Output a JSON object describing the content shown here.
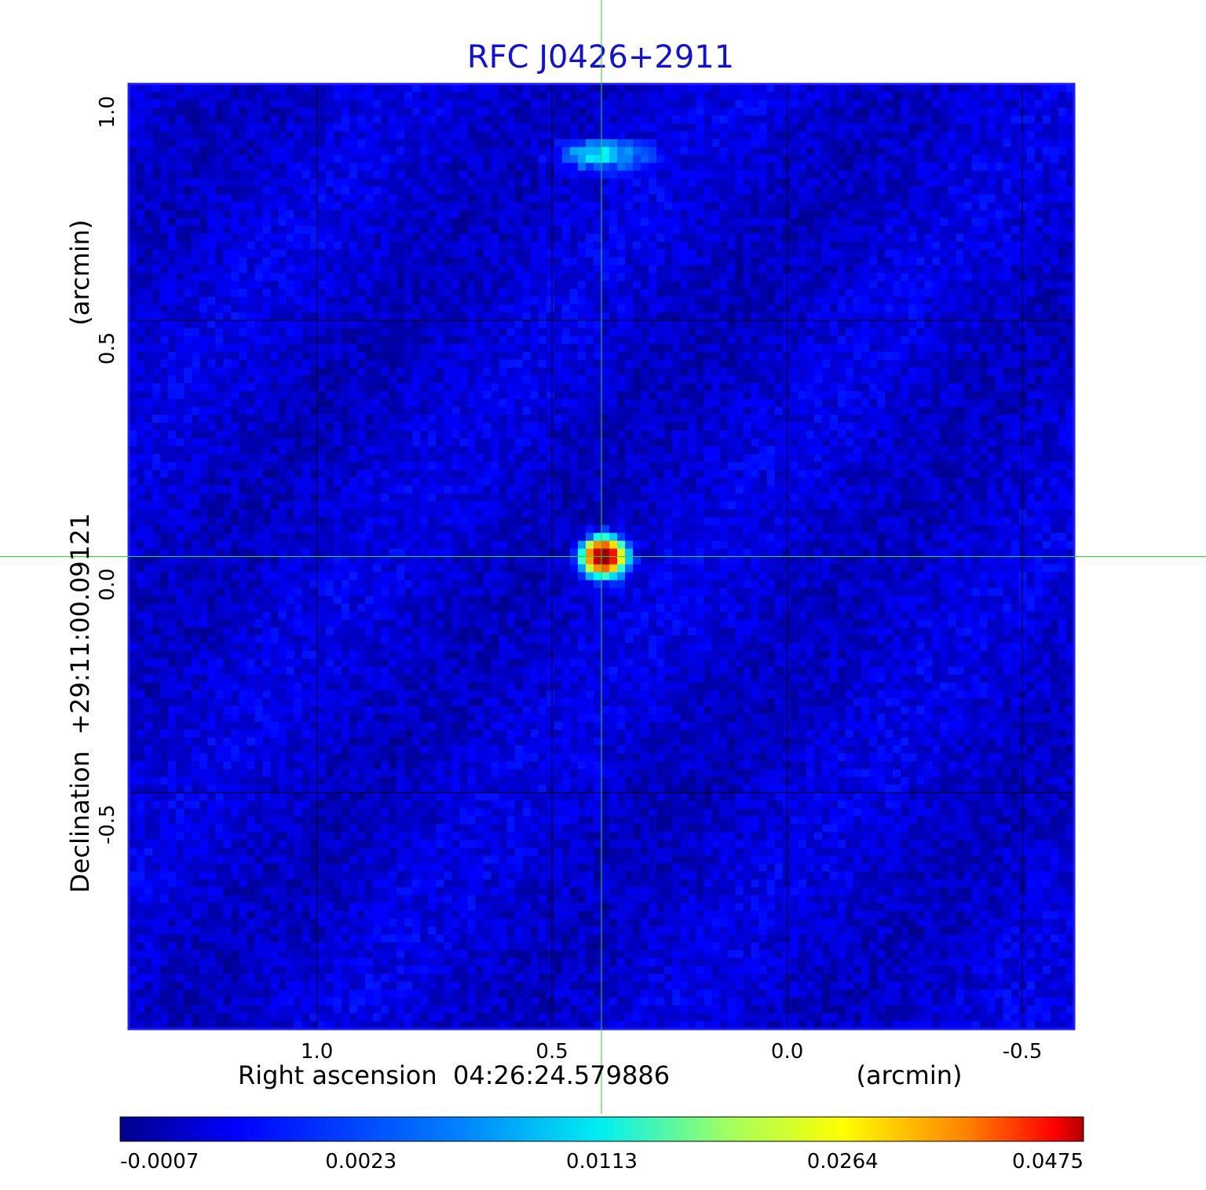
{
  "chart_data": {
    "type": "heatmap",
    "title": "RFC J0426+2911",
    "xlabel": "Right ascension  04:26:24.579886",
    "xunit": "(arcmin)",
    "ylabel": "Declination  +29:11:00.09121",
    "yunit": "(arcmin)",
    "x_ticks": [
      {
        "value": 1.0,
        "label": "1.0"
      },
      {
        "value": 0.5,
        "label": "0.5"
      },
      {
        "value": 0.0,
        "label": "0.0"
      },
      {
        "value": -0.5,
        "label": "-0.5"
      }
    ],
    "y_ticks": [
      {
        "value": 1.0,
        "label": "1.0"
      },
      {
        "value": 0.5,
        "label": "0.5"
      },
      {
        "value": 0.0,
        "label": "0.0"
      },
      {
        "value": -0.5,
        "label": "-0.5"
      }
    ],
    "xlim": [
      1.4,
      -0.61
    ],
    "ylim": [
      -1.0,
      1.0
    ],
    "grid": true,
    "crosshair": {
      "x": 0.395,
      "y": 0.0
    },
    "colormap": "jet",
    "colorbar": {
      "tick_labels": [
        "-0.0007",
        "0.0023",
        "0.0113",
        "0.0264",
        "0.0475"
      ],
      "min": -0.0007,
      "max": 0.0475
    },
    "features": [
      {
        "name": "peak",
        "x": 0.39,
        "y": 0.0,
        "value": 0.0475
      },
      {
        "name": "secondary",
        "x": 0.4,
        "y": 0.85,
        "value": 0.006
      }
    ],
    "background_level": 0.0008
  }
}
